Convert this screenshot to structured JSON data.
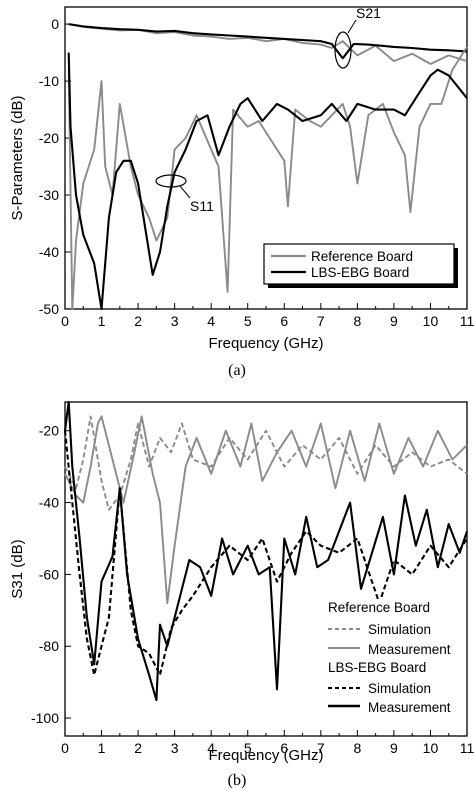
{
  "chart_data": [
    {
      "type": "line",
      "caption": "(a)",
      "xlabel": "Frequency (GHz)",
      "ylabel": "S-Parameters (dB)",
      "xlim": [
        0,
        11
      ],
      "ylim": [
        -50,
        3
      ],
      "xticks": [
        0,
        1,
        2,
        3,
        4,
        5,
        6,
        7,
        8,
        9,
        10,
        11
      ],
      "yticks": [
        0,
        -10,
        -20,
        -30,
        -40,
        -50
      ],
      "legend_position": "bottom-right",
      "annotations": [
        {
          "text": "S21",
          "x": 7.6,
          "y": -3.5
        },
        {
          "text": "S11",
          "x": 2.95,
          "y": -28
        }
      ],
      "series": [
        {
          "name": "Reference Board",
          "group": "S21",
          "color": "#8a8a8a",
          "x": [
            0.1,
            0.5,
            1.0,
            1.5,
            2.0,
            2.5,
            3.0,
            3.5,
            4.0,
            4.5,
            5.0,
            5.5,
            6.0,
            6.5,
            7.0,
            7.3,
            7.6,
            8.0,
            8.5,
            9.0,
            9.5,
            10.0,
            10.5,
            11.0
          ],
          "y": [
            0,
            -0.5,
            -0.8,
            -1.1,
            -1.0,
            -1.6,
            -1.4,
            -2.0,
            -2.2,
            -2.6,
            -2.4,
            -3.0,
            -2.6,
            -3.3,
            -3.6,
            -4.2,
            -3.0,
            -5.5,
            -3.8,
            -6.5,
            -5.2,
            -7.0,
            -5.5,
            -6.5
          ]
        },
        {
          "name": "LBS-EBG Board",
          "group": "S21",
          "color": "#000000",
          "x": [
            0.1,
            0.5,
            1.0,
            1.5,
            2.0,
            2.5,
            3.0,
            3.5,
            4.0,
            4.5,
            5.0,
            5.5,
            6.0,
            6.5,
            7.0,
            7.3,
            7.6,
            7.9,
            8.3,
            9.0,
            9.5,
            10.0,
            10.5,
            11.0
          ],
          "y": [
            0,
            -0.4,
            -0.7,
            -0.9,
            -1.0,
            -1.3,
            -1.2,
            -1.6,
            -1.8,
            -2.0,
            -2.2,
            -2.4,
            -2.6,
            -2.8,
            -3.0,
            -3.5,
            -6.0,
            -3.5,
            -3.6,
            -4.0,
            -4.2,
            -4.5,
            -4.6,
            -4.8
          ]
        },
        {
          "name": "Reference Board",
          "group": "S11",
          "color": "#8a8a8a",
          "x": [
            0.1,
            0.2,
            0.3,
            0.5,
            0.8,
            1.0,
            1.1,
            1.3,
            1.5,
            1.8,
            2.0,
            2.3,
            2.5,
            2.8,
            3.0,
            3.3,
            3.6,
            4.0,
            4.2,
            4.45,
            4.6,
            5.0,
            5.3,
            5.6,
            6.0,
            6.1,
            6.3,
            6.7,
            7.0,
            7.3,
            7.6,
            7.8,
            8.0,
            8.3,
            8.7,
            9.0,
            9.3,
            9.45,
            9.7,
            10.0,
            10.3,
            10.6,
            11.0
          ],
          "y": [
            -8,
            -50,
            -38,
            -28,
            -22,
            -10,
            -25,
            -30,
            -14,
            -25,
            -30,
            -34,
            -38,
            -34,
            -22,
            -20,
            -16,
            -22,
            -25,
            -47,
            -15,
            -18,
            -17,
            -20,
            -24,
            -32,
            -15,
            -17,
            -18,
            -16,
            -14,
            -18,
            -28,
            -16,
            -14,
            -19,
            -23,
            -33,
            -18,
            -14,
            -14,
            -8,
            -4
          ]
        },
        {
          "name": "LBS-EBG Board",
          "group": "S11",
          "color": "#000000",
          "x": [
            0.1,
            0.15,
            0.3,
            0.5,
            0.8,
            1.0,
            1.2,
            1.4,
            1.6,
            1.8,
            2.0,
            2.2,
            2.4,
            2.6,
            2.8,
            3.0,
            3.3,
            3.6,
            3.9,
            4.2,
            4.5,
            4.8,
            5.0,
            5.4,
            5.8,
            6.1,
            6.5,
            7.0,
            7.3,
            7.7,
            8.0,
            8.5,
            9.0,
            9.3,
            9.6,
            10.0,
            10.2,
            10.5,
            11.0
          ],
          "y": [
            -5,
            -18,
            -30,
            -37,
            -42,
            -51,
            -34,
            -26,
            -24,
            -24,
            -28,
            -36,
            -44,
            -40,
            -32,
            -26,
            -22,
            -17,
            -16,
            -23,
            -18,
            -14,
            -13,
            -17,
            -14,
            -15,
            -17,
            -16,
            -14,
            -17,
            -14,
            -15,
            -15,
            -16,
            -13,
            -9,
            -8,
            -9,
            -13
          ]
        }
      ]
    },
    {
      "type": "line",
      "caption": "(b)",
      "xlabel": "Frequency (GHz)",
      "ylabel": "S31 (dB)",
      "xlim": [
        0,
        11
      ],
      "ylim": [
        -105,
        -12
      ],
      "xticks": [
        0,
        1,
        2,
        3,
        4,
        5,
        6,
        7,
        8,
        9,
        10,
        11
      ],
      "yticks": [
        -20,
        -40,
        -60,
        -80,
        -100
      ],
      "legend_position": "bottom-right",
      "legend_groups": [
        {
          "title": "Reference Board",
          "items": [
            {
              "label": "Simulation",
              "color": "#8a8a8a",
              "dashed": true
            },
            {
              "label": "Measurement",
              "color": "#8a8a8a",
              "dashed": false
            }
          ]
        },
        {
          "title": "LBS-EBG Board",
          "items": [
            {
              "label": "Simulation",
              "color": "#000000",
              "dashed": true
            },
            {
              "label": "Measurement",
              "color": "#000000",
              "dashed": false
            }
          ]
        }
      ],
      "series": [
        {
          "name": "Reference Board Simulation",
          "color": "#8a8a8a",
          "dashed": true,
          "x": [
            0.0,
            0.3,
            0.5,
            0.7,
            1.0,
            1.2,
            1.5,
            1.8,
            2.0,
            2.3,
            2.6,
            2.9,
            3.2,
            3.5,
            4.0,
            4.5,
            5.0,
            5.5,
            6.0,
            6.5,
            7.0,
            7.5,
            8.0,
            8.5,
            9.0,
            9.5,
            10.0,
            10.5,
            11.0
          ],
          "y": [
            -30,
            -36,
            -28,
            -16,
            -34,
            -42,
            -38,
            -28,
            -18,
            -30,
            -22,
            -26,
            -18,
            -28,
            -30,
            -22,
            -28,
            -20,
            -30,
            -24,
            -28,
            -22,
            -32,
            -24,
            -30,
            -26,
            -30,
            -28,
            -32
          ]
        },
        {
          "name": "Reference Board Measurement",
          "color": "#8a8a8a",
          "dashed": false,
          "x": [
            0.0,
            0.3,
            0.5,
            0.7,
            0.9,
            1.0,
            1.3,
            1.6,
            1.9,
            2.1,
            2.4,
            2.6,
            2.8,
            3.0,
            3.3,
            3.6,
            4.0,
            4.4,
            4.8,
            5.1,
            5.4,
            5.8,
            6.2,
            6.6,
            7.0,
            7.4,
            7.8,
            8.2,
            8.6,
            9.0,
            9.4,
            9.8,
            10.2,
            10.6,
            11.0
          ],
          "y": [
            -32,
            -38,
            -40,
            -30,
            -18,
            -16,
            -28,
            -40,
            -26,
            -16,
            -32,
            -40,
            -68,
            -52,
            -30,
            -22,
            -32,
            -20,
            -30,
            -18,
            -34,
            -26,
            -20,
            -30,
            -18,
            -36,
            -20,
            -34,
            -18,
            -32,
            -22,
            -30,
            -20,
            -28,
            -24
          ]
        },
        {
          "name": "LBS-EBG Board Simulation",
          "color": "#000000",
          "dashed": true,
          "x": [
            0.0,
            0.2,
            0.4,
            0.6,
            0.8,
            1.0,
            1.2,
            1.5,
            1.8,
            2.0,
            2.3,
            2.6,
            2.9,
            3.2,
            3.5,
            4.0,
            4.5,
            5.0,
            5.4,
            5.8,
            6.2,
            6.6,
            7.0,
            7.5,
            8.0,
            8.6,
            9.0,
            9.5,
            10.0,
            10.5,
            11.0
          ],
          "y": [
            -20,
            -40,
            -60,
            -78,
            -88,
            -80,
            -72,
            -36,
            -70,
            -80,
            -82,
            -88,
            -75,
            -70,
            -66,
            -58,
            -52,
            -56,
            -50,
            -62,
            -54,
            -48,
            -52,
            -54,
            -50,
            -68,
            -56,
            -60,
            -52,
            -58,
            -50
          ]
        },
        {
          "name": "LBS-EBG Board Measurement",
          "color": "#000000",
          "dashed": false,
          "x": [
            0.0,
            0.1,
            0.2,
            0.4,
            0.6,
            0.8,
            1.0,
            1.3,
            1.5,
            1.7,
            2.0,
            2.3,
            2.5,
            2.6,
            2.8,
            3.1,
            3.4,
            3.7,
            4.0,
            4.3,
            4.6,
            5.0,
            5.3,
            5.6,
            5.8,
            6.0,
            6.3,
            6.6,
            6.9,
            7.2,
            7.5,
            7.8,
            8.1,
            8.4,
            8.7,
            9.0,
            9.3,
            9.6,
            9.9,
            10.2,
            10.5,
            10.8,
            11.0
          ],
          "y": [
            -20,
            -10,
            -30,
            -50,
            -72,
            -85,
            -62,
            -55,
            -36,
            -60,
            -78,
            -88,
            -95,
            -74,
            -80,
            -68,
            -56,
            -58,
            -66,
            -50,
            -60,
            -52,
            -60,
            -58,
            -92,
            -50,
            -60,
            -44,
            -58,
            -56,
            -48,
            -40,
            -64,
            -54,
            -44,
            -60,
            -38,
            -52,
            -42,
            -58,
            -46,
            -54,
            -48
          ]
        }
      ]
    }
  ]
}
